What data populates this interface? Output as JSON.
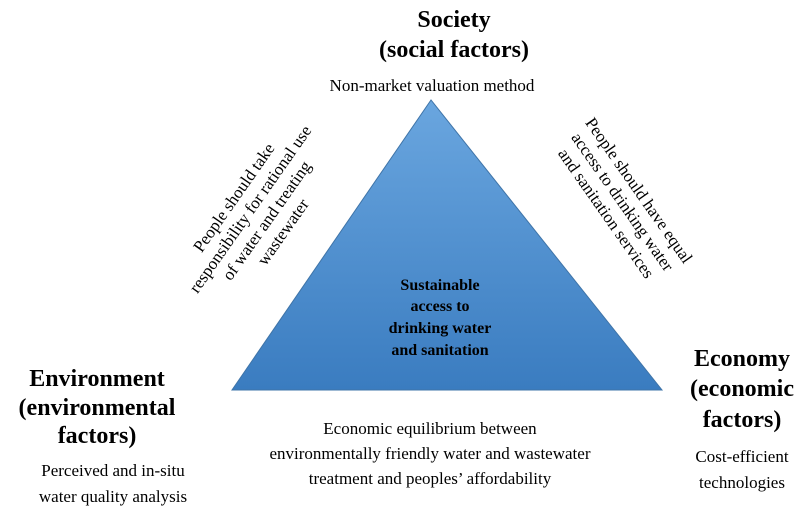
{
  "society": {
    "title": [
      "Society",
      "(social factors)"
    ],
    "method": "Non-market valuation method"
  },
  "environment": {
    "title": [
      "Environment",
      "(environmental",
      "factors)"
    ],
    "method": [
      "Perceived and in-situ",
      "water quality analysis"
    ]
  },
  "economy": {
    "title": [
      "Economy",
      "(economic",
      "factors)"
    ],
    "method": [
      "Cost-efficient",
      "technologies"
    ]
  },
  "center": [
    "Sustainable",
    "access to",
    "drinking water",
    "and sanitation"
  ],
  "left_edge": [
    "People should take",
    "responsibility for rational use",
    "of water and treating",
    "wastewater"
  ],
  "right_edge": [
    "People should have equal",
    "access to drinking water",
    "and sanitation services"
  ],
  "bottom_edge": [
    "Economic equilibrium between",
    "environmentally friendly water and wastewater",
    "treatment and peoples’ affordability"
  ]
}
